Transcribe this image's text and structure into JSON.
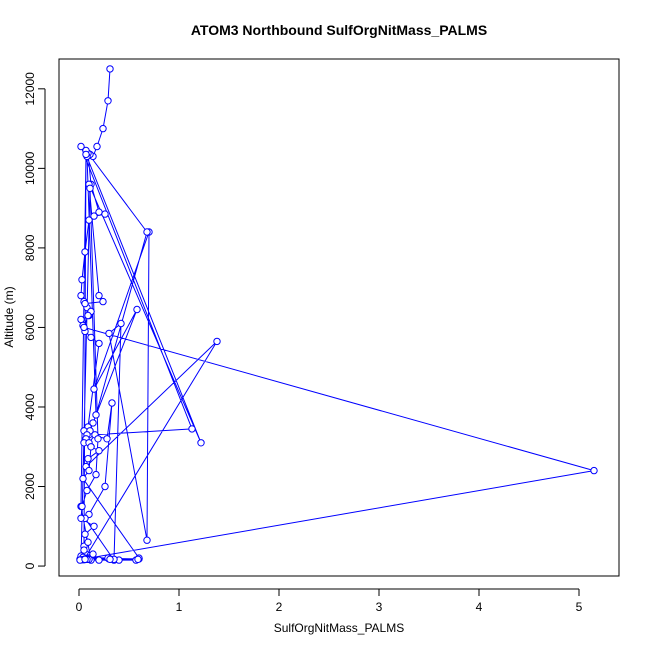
{
  "chart_data": {
    "type": "line",
    "title": "ATOM3 Northbound SulfOrgNitMass_PALMS",
    "xlabel": "SulfOrgNitMass_PALMS",
    "ylabel": "Altitude (m)",
    "xlim": [
      -0.2,
      5.4
    ],
    "ylim": [
      -250,
      12750
    ],
    "xticks": [
      0,
      1,
      2,
      3,
      4,
      5
    ],
    "yticks": [
      0,
      2000,
      4000,
      6000,
      8000,
      10000,
      12000
    ],
    "grid": false,
    "line_color": "#0000ff",
    "marker": "open-circle",
    "series": [
      {
        "x": [
          0.31,
          0.29,
          0.24,
          0.18,
          0.14,
          0.11,
          0.09,
          0.12,
          0.2,
          0.26,
          0.15,
          0.1,
          0.06,
          0.03,
          0.02,
          0.05,
          0.08,
          0.12,
          0.1,
          0.02,
          0.04,
          0.06,
          0.12,
          0.2,
          0.09,
          0.05,
          0.1,
          0.28,
          0.33,
          0.26,
          0.1,
          0.06,
          0.35,
          0.42,
          0.3,
          0.68,
          0.7,
          0.15,
          0.58,
          0.14,
          0.11,
          0.08,
          0.07,
          0.05,
          0.12,
          0.2,
          0.09,
          0.07,
          1.38,
          0.05,
          0.02,
          0.01,
          0.1,
          0.3,
          0.6,
          0.03,
          0.05,
          0.07,
          0.68,
          0.17,
          0.08,
          0.02,
          1.13,
          0.16,
          0.1,
          0.12,
          0.1,
          0.04,
          0.6,
          0.57,
          0.4,
          0.2,
          0.12,
          0.02,
          0.07,
          1.22,
          0.1,
          0.2,
          0.24,
          0.06,
          0.12,
          0.09,
          0.05,
          5.15,
          0.03,
          0.07,
          0.1,
          0.05,
          0.59,
          0.1,
          0.08,
          0.02,
          0.11,
          0.19,
          0.17,
          0.08,
          0.03,
          0.02,
          0.15,
          0.06,
          0.09,
          0.05,
          0.14,
          0.02,
          0.04,
          0.29,
          0.06,
          0.35,
          0.03,
          0.01,
          0.31,
          0.06
        ],
        "y": [
          12500,
          11700,
          11000,
          10550,
          10300,
          10350,
          10380,
          9600,
          8900,
          8850,
          8800,
          8700,
          7900,
          7200,
          6800,
          6650,
          6500,
          6400,
          6300,
          6200,
          6050,
          5900,
          5750,
          5600,
          3500,
          3400,
          3300,
          3200,
          4100,
          2000,
          1300,
          1200,
          150,
          6100,
          5850,
          650,
          8400,
          4450,
          6450,
          3600,
          3400,
          3300,
          3200,
          3100,
          3000,
          2900,
          2700,
          2500,
          5650,
          160,
          170,
          170,
          180,
          180,
          180,
          200,
          500,
          10450,
          8400,
          3800,
          10300,
          10550,
          3450,
          3300,
          3100,
          3000,
          2400,
          2200,
          200,
          150,
          150,
          150,
          150,
          1500,
          10350,
          3100,
          9600,
          6800,
          6650,
          6600,
          6400,
          6300,
          6000,
          2400,
          170,
          170,
          170,
          170,
          170,
          170,
          170,
          170,
          9500,
          3200,
          2300,
          1900,
          1500,
          1200,
          1000,
          800,
          600,
          400,
          300,
          250,
          220,
          200,
          180,
          170,
          160,
          150,
          170,
          170
        ]
      }
    ]
  }
}
